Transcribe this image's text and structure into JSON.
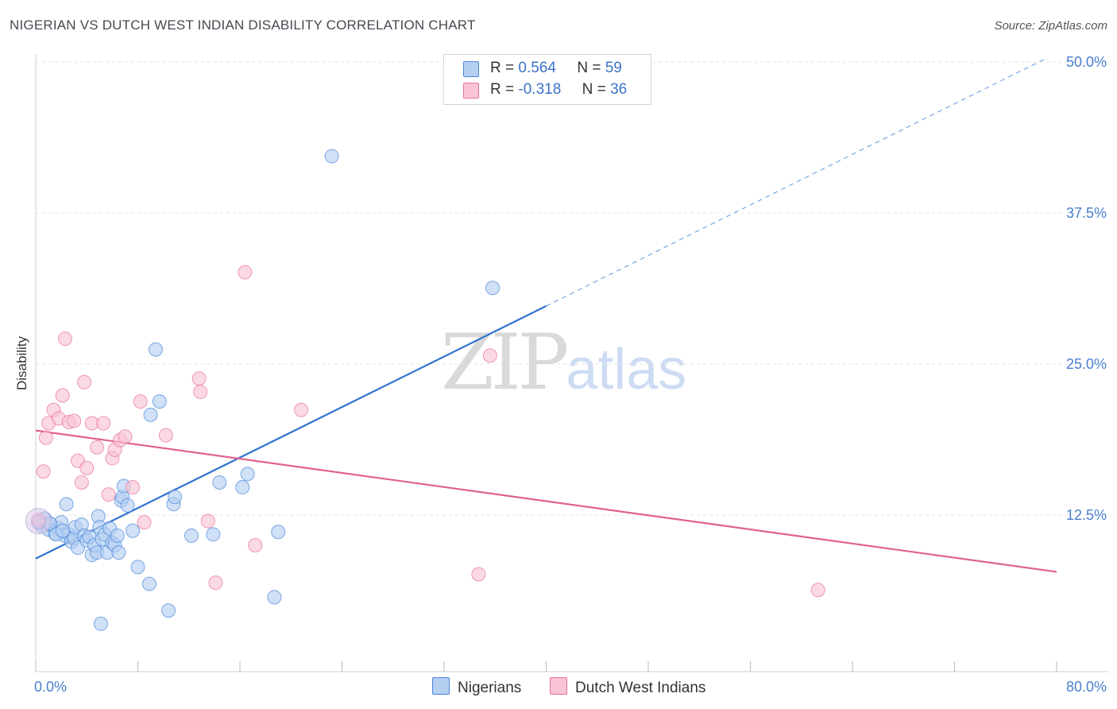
{
  "title": "NIGERIAN VS DUTCH WEST INDIAN DISABILITY CORRELATION CHART",
  "source": "Source: ZipAtlas.com",
  "watermark": {
    "zip": "ZIP",
    "atlas": "atlas"
  },
  "legend": {
    "rows": [
      {
        "r_label": "R =",
        "r_value": "0.564",
        "n_label": "N =",
        "n_value": "59",
        "color": "#b5cff2"
      },
      {
        "r_label": "R =",
        "r_value": "-0.318",
        "n_label": "N =",
        "n_value": "36",
        "color": "#f9c4d4"
      }
    ]
  },
  "bottom_legend": [
    {
      "label": "Nigerians",
      "color": "#b5cff2"
    },
    {
      "label": "Dutch West Indians",
      "color": "#f9c4d4"
    }
  ],
  "chart_data": {
    "type": "scatter",
    "title": "NIGERIAN VS DUTCH WEST INDIAN DISABILITY CORRELATION CHART",
    "xlabel": "",
    "ylabel": "Disability",
    "xlim": [
      0,
      80
    ],
    "ylim": [
      0,
      50
    ],
    "x_tick_labels": [
      "0.0%",
      "80.0%"
    ],
    "y_ticks": [
      12.5,
      25.0,
      37.5,
      50.0
    ],
    "y_tick_labels": [
      "12.5%",
      "25.0%",
      "37.5%",
      "50.0%"
    ],
    "grid": true,
    "series": [
      {
        "name": "Nigerians",
        "color": "#4a86d8",
        "fill": "#b5cff2",
        "points": [
          [
            0.3,
            12.0
          ],
          [
            0.5,
            11.6
          ],
          [
            0.7,
            12.2
          ],
          [
            1.0,
            11.3
          ],
          [
            1.2,
            11.7
          ],
          [
            1.5,
            11.0
          ],
          [
            1.8,
            11.4
          ],
          [
            2.0,
            11.9
          ],
          [
            2.3,
            10.8
          ],
          [
            2.6,
            10.9
          ],
          [
            2.4,
            13.4
          ],
          [
            2.8,
            10.3
          ],
          [
            3.0,
            10.6
          ],
          [
            3.1,
            11.5
          ],
          [
            3.3,
            9.8
          ],
          [
            3.6,
            11.7
          ],
          [
            3.8,
            10.8
          ],
          [
            4.0,
            10.4
          ],
          [
            4.2,
            10.7
          ],
          [
            4.4,
            9.2
          ],
          [
            4.6,
            10.0
          ],
          [
            4.8,
            9.4
          ],
          [
            4.9,
            12.4
          ],
          [
            5.0,
            11.5
          ],
          [
            5.2,
            10.5
          ],
          [
            5.4,
            10.9
          ],
          [
            5.6,
            9.4
          ],
          [
            5.8,
            11.4
          ],
          [
            6.0,
            10.2
          ],
          [
            6.2,
            10.0
          ],
          [
            6.4,
            10.8
          ],
          [
            6.5,
            9.4
          ],
          [
            6.7,
            13.7
          ],
          [
            6.8,
            14.0
          ],
          [
            6.9,
            14.9
          ],
          [
            7.2,
            13.3
          ],
          [
            7.6,
            11.2
          ],
          [
            8.0,
            8.2
          ],
          [
            8.9,
            6.8
          ],
          [
            9.4,
            26.2
          ],
          [
            9.0,
            20.8
          ],
          [
            9.7,
            21.9
          ],
          [
            10.4,
            4.6
          ],
          [
            10.8,
            13.4
          ],
          [
            10.9,
            14.0
          ],
          [
            12.2,
            10.8
          ],
          [
            13.9,
            10.9
          ],
          [
            14.4,
            15.2
          ],
          [
            16.2,
            14.8
          ],
          [
            16.6,
            15.9
          ],
          [
            18.7,
            5.7
          ],
          [
            19.0,
            11.1
          ],
          [
            23.2,
            42.2
          ],
          [
            35.8,
            31.3
          ],
          [
            5.1,
            3.5
          ],
          [
            1.1,
            11.8
          ],
          [
            1.6,
            10.9
          ],
          [
            2.1,
            11.2
          ],
          [
            0.2,
            11.9
          ]
        ]
      },
      {
        "name": "Dutch West Indians",
        "color": "#e8709a",
        "fill": "#f9c4d4",
        "points": [
          [
            0.2,
            12.1
          ],
          [
            0.6,
            16.1
          ],
          [
            0.8,
            18.9
          ],
          [
            1.0,
            20.1
          ],
          [
            1.4,
            21.2
          ],
          [
            1.8,
            20.5
          ],
          [
            2.1,
            22.4
          ],
          [
            2.3,
            27.1
          ],
          [
            2.6,
            20.2
          ],
          [
            3.0,
            20.3
          ],
          [
            3.3,
            17.0
          ],
          [
            3.6,
            15.2
          ],
          [
            3.8,
            23.5
          ],
          [
            4.0,
            16.4
          ],
          [
            4.4,
            20.1
          ],
          [
            4.8,
            18.1
          ],
          [
            5.3,
            20.1
          ],
          [
            5.7,
            14.2
          ],
          [
            6.0,
            17.2
          ],
          [
            6.2,
            17.9
          ],
          [
            6.6,
            18.7
          ],
          [
            7.0,
            19.0
          ],
          [
            7.6,
            14.8
          ],
          [
            8.2,
            21.9
          ],
          [
            8.5,
            11.9
          ],
          [
            10.2,
            19.1
          ],
          [
            12.8,
            23.8
          ],
          [
            12.9,
            22.7
          ],
          [
            13.5,
            12.0
          ],
          [
            14.1,
            6.9
          ],
          [
            16.4,
            32.6
          ],
          [
            17.2,
            10.0
          ],
          [
            20.8,
            21.2
          ],
          [
            35.6,
            25.7
          ],
          [
            34.7,
            7.6
          ],
          [
            61.3,
            6.3
          ]
        ]
      }
    ],
    "trend_lines": [
      {
        "series": "Nigerians",
        "x_start": 0,
        "y_start": 8.9,
        "x_solid_end": 40,
        "y_solid_end": 29.8,
        "x_end": 79,
        "y_end": 50.2,
        "dashed_after_solid": true
      },
      {
        "series": "Dutch West Indians",
        "x_start": 0,
        "y_start": 19.5,
        "x_end": 80,
        "y_end": 7.8
      }
    ]
  }
}
